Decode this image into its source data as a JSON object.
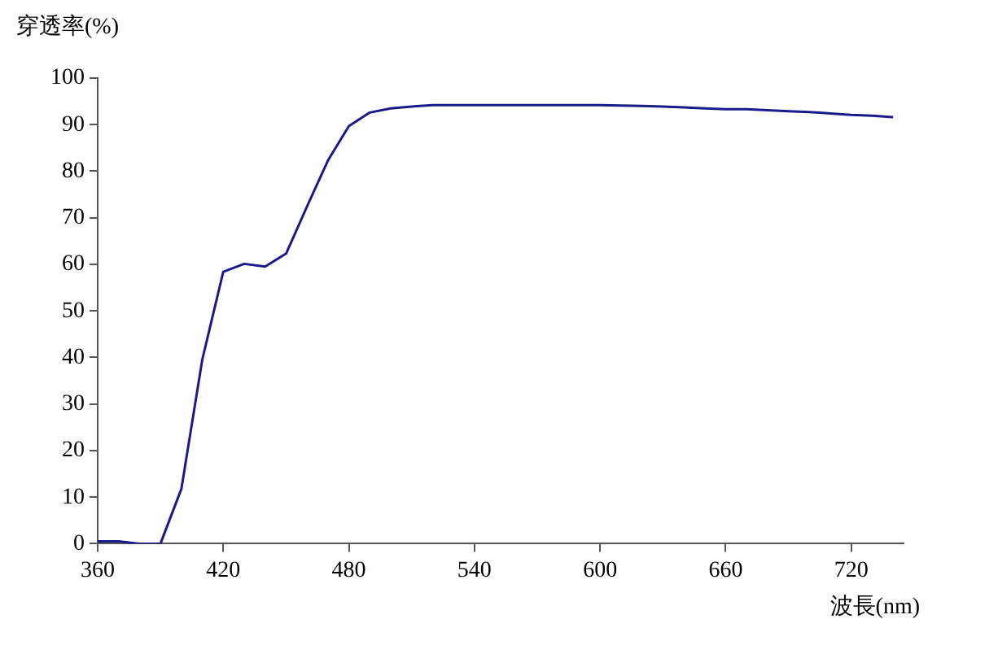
{
  "chart_data": {
    "type": "line",
    "xlabel": "波長(nm)",
    "ylabel": "穿透率(%)",
    "x": [
      360,
      370,
      380,
      390,
      400,
      410,
      420,
      430,
      440,
      450,
      460,
      470,
      480,
      490,
      500,
      510,
      520,
      530,
      540,
      550,
      560,
      570,
      580,
      590,
      600,
      610,
      620,
      630,
      640,
      650,
      660,
      670,
      680,
      690,
      700,
      710,
      720,
      730,
      740
    ],
    "series": [
      {
        "color": "#1a1a8c",
        "values": [
          0.5,
          0.5,
          0,
          0,
          11.8,
          39.6,
          58.4,
          60.1,
          59.5,
          62.3,
          72.4,
          82.3,
          89.7,
          92.6,
          93.5,
          93.9,
          94.2,
          94.2,
          94.2,
          94.2,
          94.2,
          94.2,
          94.2,
          94.2,
          94.2,
          94.1,
          94,
          93.9,
          93.7,
          93.5,
          93.3,
          93.3,
          93.1,
          92.9,
          92.7,
          92.4,
          92.1,
          91.9,
          91.6
        ]
      }
    ],
    "xlim": [
      360,
      745
    ],
    "xticks": [
      360,
      420,
      480,
      540,
      600,
      660,
      720
    ],
    "ylim": [
      0,
      100
    ],
    "yticks": [
      0,
      10,
      20,
      30,
      40,
      50,
      60,
      70,
      80,
      90,
      100
    ],
    "grid": false,
    "legend": false,
    "marker": "none",
    "line_style": "solid"
  }
}
